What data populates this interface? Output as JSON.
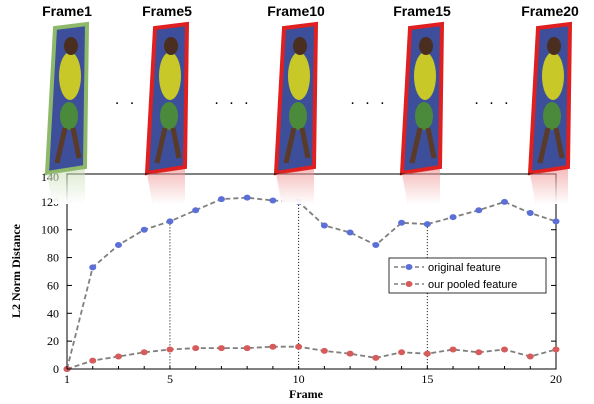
{
  "frames": {
    "labels": [
      "Frame1",
      "Frame5",
      "Frame10",
      "Frame15",
      "Frame20"
    ],
    "border_colors": [
      "#8fb96a",
      "#e02020",
      "#e02020",
      "#e02020",
      "#e02020"
    ],
    "ellipsis": ". .",
    "ellipsis_long": ". . ."
  },
  "chart_data": {
    "type": "line",
    "xlabel": "Frame",
    "ylabel": "L2 Norm Distance",
    "xlim": [
      1,
      20
    ],
    "ylim": [
      0,
      140
    ],
    "xticks": [
      1,
      5,
      10,
      15,
      20
    ],
    "yticks": [
      0,
      20,
      40,
      60,
      80,
      100,
      120
    ],
    "ytick_top": "140",
    "grid": false,
    "legend_position": "middle-right",
    "x": [
      1,
      2,
      3,
      4,
      5,
      6,
      7,
      8,
      9,
      10,
      11,
      12,
      13,
      14,
      15,
      16,
      17,
      18,
      19,
      20
    ],
    "series": [
      {
        "name": "original feature",
        "color": "#5b6fd6",
        "line_color": "#7f7f7f",
        "values": [
          0,
          73,
          89,
          100,
          106,
          114,
          122,
          123,
          121,
          120,
          103,
          98,
          89,
          105,
          104,
          109,
          114,
          120,
          112,
          106
        ]
      },
      {
        "name": "our pooled feature",
        "color": "#d65b5b",
        "line_color": "#7f7f7f",
        "values": [
          0,
          6,
          9,
          12,
          14,
          15,
          15,
          15,
          16,
          16,
          13,
          11,
          8,
          12,
          11,
          14,
          12,
          14,
          9,
          14
        ]
      }
    ],
    "guides_at_x": [
      5,
      10,
      15
    ]
  }
}
